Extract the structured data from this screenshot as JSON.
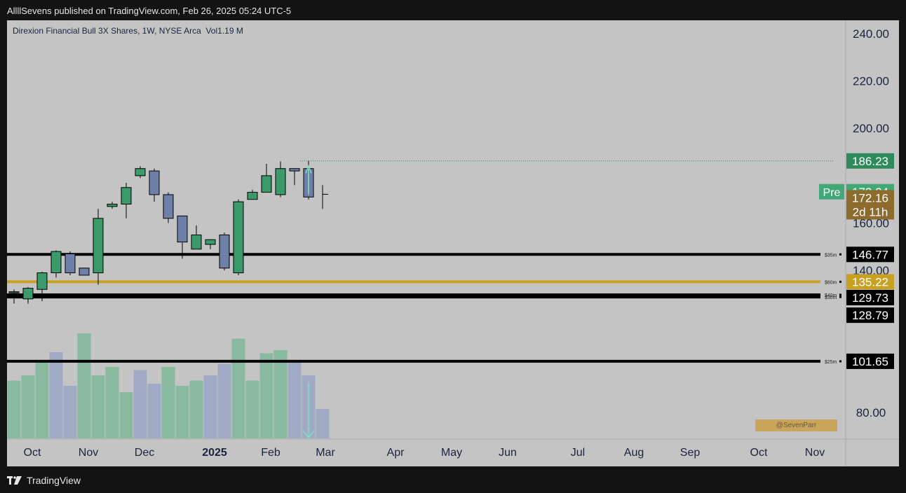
{
  "header": {
    "text": "AllllSevens published on TradingView.com, Feb 26, 2025 05:24 UTC-5"
  },
  "footer": {
    "brand": "TradingView"
  },
  "watermark": "@SevenParr",
  "colors": {
    "up": "#3a9a6a",
    "down": "#6e7fa8",
    "gold": "#c8a024",
    "black": "#000000",
    "green_label": "#2e8a5a",
    "pre_green": "#42a878",
    "brown": "#8c6c2c"
  },
  "chart_data": {
    "type": "candlestick",
    "title": "Direxion Financial Bull 3X Shares, 1W, NYSE Arca",
    "volume_label": "Vol",
    "volume_value": "1.19 M",
    "ylim": [
      70,
      245
    ],
    "y_ticks": [
      80,
      140,
      160,
      200,
      220,
      240
    ],
    "y_tick_labels": [
      "80.00",
      "140.00",
      "160.00",
      "200.00",
      "220.00",
      "240.00"
    ],
    "x_labels": [
      {
        "label": "Oct",
        "bold": false
      },
      {
        "label": "Nov",
        "bold": false
      },
      {
        "label": "Dec",
        "bold": false
      },
      {
        "label": "2025",
        "bold": true
      },
      {
        "label": "Feb",
        "bold": false
      },
      {
        "label": "Mar",
        "bold": false
      },
      {
        "label": "Apr",
        "bold": false
      },
      {
        "label": "May",
        "bold": false
      },
      {
        "label": "Jun",
        "bold": false
      },
      {
        "label": "Jul",
        "bold": false
      },
      {
        "label": "Aug",
        "bold": false
      },
      {
        "label": "Sep",
        "bold": false
      },
      {
        "label": "Oct",
        "bold": false
      },
      {
        "label": "Nov",
        "bold": false
      }
    ],
    "candles": [
      {
        "o": 131,
        "h": 132,
        "l": 126,
        "c": 131,
        "v": null
      },
      {
        "o": 128,
        "h": 133,
        "l": 126,
        "c": 132.5,
        "v": null
      },
      {
        "o": 132,
        "h": 139.5,
        "l": 127,
        "c": 139,
        "v": null
      },
      {
        "o": 139,
        "h": 148.5,
        "l": 137,
        "c": 148,
        "v": null
      },
      {
        "o": 147,
        "h": 148,
        "l": 138,
        "c": 139,
        "v": null
      },
      {
        "o": 141,
        "h": 141,
        "l": 138,
        "c": 138,
        "v": null
      },
      {
        "o": 139,
        "h": 166,
        "l": 134,
        "c": 162,
        "v": null
      },
      {
        "o": 167,
        "h": 169,
        "l": 166,
        "c": 168,
        "v": null
      },
      {
        "o": 168,
        "h": 177,
        "l": 162,
        "c": 175,
        "v": null
      },
      {
        "o": 180,
        "h": 184,
        "l": 179,
        "c": 183,
        "v": null
      },
      {
        "o": 182,
        "h": 183,
        "l": 169,
        "c": 172,
        "v": null
      },
      {
        "o": 172,
        "h": 173,
        "l": 160,
        "c": 162,
        "v": null
      },
      {
        "o": 163,
        "h": 163,
        "l": 145,
        "c": 152,
        "v": null
      },
      {
        "o": 149,
        "h": 159,
        "l": 149,
        "c": 155,
        "v": null
      },
      {
        "o": 151,
        "h": 153,
        "l": 149,
        "c": 153,
        "v": null
      },
      {
        "o": 155,
        "h": 156,
        "l": 140,
        "c": 141,
        "v": null
      },
      {
        "o": 139,
        "h": 170,
        "l": 138,
        "c": 169,
        "v": null
      },
      {
        "o": 170,
        "h": 174,
        "l": 170,
        "c": 173,
        "v": null
      },
      {
        "o": 173,
        "h": 185,
        "l": 173,
        "c": 180,
        "v": null
      },
      {
        "o": 172,
        "h": 186,
        "l": 171,
        "c": 183,
        "v": null
      },
      {
        "o": 183,
        "h": 183,
        "l": 176,
        "c": 182,
        "v": null
      },
      {
        "o": 183,
        "h": 186.23,
        "l": 170,
        "c": 171,
        "v": null
      },
      {
        "o": 172.16,
        "h": 176,
        "l": 166,
        "c": 172.16,
        "v": null
      }
    ],
    "volumes": [
      0.55,
      0.6,
      0.72,
      0.82,
      0.5,
      1.0,
      0.6,
      0.68,
      0.44,
      0.65,
      0.52,
      0.68,
      0.5,
      0.55,
      0.6,
      0.71,
      0.95,
      0.55,
      0.81,
      0.84,
      0.74,
      0.6,
      0.28
    ],
    "volume_colors": [
      "u",
      "u",
      "u",
      "d",
      "d",
      "u",
      "u",
      "u",
      "u",
      "d",
      "d",
      "u",
      "u",
      "u",
      "d",
      "d",
      "u",
      "u",
      "u",
      "u",
      "d",
      "d",
      "d"
    ],
    "h_lines": [
      {
        "value": 146.77,
        "color": "#000000",
        "tag": "$35m",
        "label": "146.77"
      },
      {
        "value": 135.22,
        "color": "#c8a024",
        "tag": "$60m",
        "label": "135.22"
      },
      {
        "value": 129.73,
        "color": "#000000",
        "tag": "$40m",
        "label": "129.73"
      },
      {
        "value": 128.79,
        "color": "#000000",
        "tag": "$30m",
        "label": "128.79"
      },
      {
        "value": 101.65,
        "color": "#000000",
        "tag": "$25m",
        "label": "101.65"
      }
    ],
    "price_tags": [
      {
        "value": 186.23,
        "label": "186.23",
        "bg": "#2e8a5a"
      },
      {
        "value": 173.24,
        "label": "173.24",
        "bg": "#42a878",
        "prefix": "Pre"
      },
      {
        "value": 172.16,
        "label": "172.16",
        "bg": "#8c6c2c",
        "sub": "2d 11h"
      }
    ],
    "dotted_high": 186.23
  }
}
